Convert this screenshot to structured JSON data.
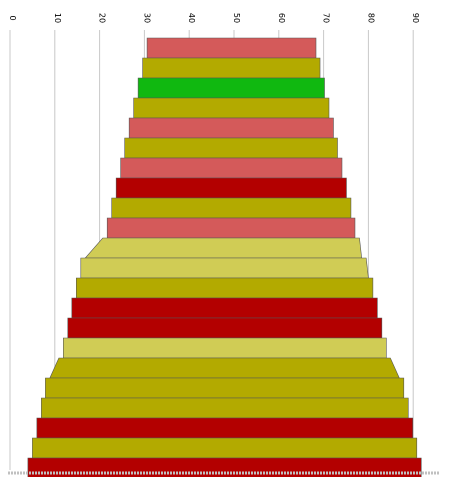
{
  "chart_data": {
    "type": "funnel",
    "title": "",
    "xlabel": "",
    "ylabel": "",
    "axis": {
      "ticks": [
        0,
        10,
        20,
        30,
        40,
        50,
        60,
        70,
        80,
        90
      ],
      "tick_labels": [
        "0",
        "10",
        "20",
        "30",
        "40",
        "50",
        "60",
        "70",
        "80",
        "90"
      ],
      "tick_label_rotation": "vertical",
      "xlim": [
        0,
        92
      ],
      "grid": true
    },
    "colors": {
      "salmon": "#d45a5a",
      "olive": "#b3aa00",
      "green": "#10b810",
      "red": "#b30000",
      "khaki": "#d0cc55",
      "gridline": "#c8c8c8",
      "outline": "#555555"
    },
    "bands": [
      {
        "left": 30.6,
        "right": 68.3,
        "color": "salmon"
      },
      {
        "left": 29.6,
        "right": 69.2,
        "color": "olive"
      },
      {
        "left": 28.6,
        "right": 70.2,
        "color": "green"
      },
      {
        "left": 27.6,
        "right": 71.2,
        "color": "olive"
      },
      {
        "left": 26.6,
        "right": 72.2,
        "color": "salmon"
      },
      {
        "left": 25.6,
        "right": 73.1,
        "color": "olive"
      },
      {
        "left": 24.7,
        "right": 74.1,
        "color": "salmon"
      },
      {
        "left": 23.7,
        "right": 75.1,
        "color": "red"
      },
      {
        "left": 22.7,
        "right": 76.1,
        "color": "olive"
      },
      {
        "left": 21.7,
        "right": 77.0,
        "color": "salmon"
      },
      {
        "left": 20.7,
        "right": 78.0,
        "color": "khaki"
      },
      {
        "left": 15.8,
        "right": 79.5,
        "color": "khaki"
      },
      {
        "left": 14.8,
        "right": 81.0,
        "color": "olive"
      },
      {
        "left": 13.8,
        "right": 82.0,
        "color": "red"
      },
      {
        "left": 12.9,
        "right": 83.0,
        "color": "red"
      },
      {
        "left": 11.9,
        "right": 84.0,
        "color": "khaki"
      },
      {
        "left": 10.9,
        "right": 84.9,
        "color": "olive"
      },
      {
        "left": 7.9,
        "right": 87.9,
        "color": "olive"
      },
      {
        "left": 7.0,
        "right": 88.9,
        "color": "olive"
      },
      {
        "left": 6.0,
        "right": 89.9,
        "color": "red"
      },
      {
        "left": 5.0,
        "right": 90.8,
        "color": "olive"
      },
      {
        "left": 4.0,
        "right": 91.8,
        "color": "red"
      }
    ]
  }
}
